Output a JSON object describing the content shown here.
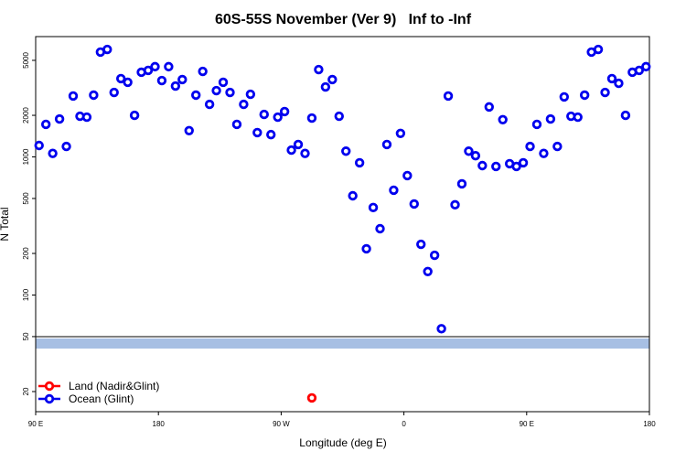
{
  "chart_data": {
    "type": "scatter",
    "title": "60S-55S November (Ver 9)   Inf to -Inf",
    "x_label": "Longitude (deg E)",
    "y_label": "N Total",
    "log_y": true,
    "legend": "lower left",
    "xlim": [
      90,
      540
    ],
    "xticks": [
      {
        "value": 90,
        "label": "90 E"
      },
      180,
      {
        "value": 270,
        "label": "90 W"
      },
      {
        "value": 360,
        "label": "0"
      },
      {
        "value": 450,
        "label": "90 E"
      },
      {
        "value": 540,
        "label": "180"
      }
    ],
    "ylim": [
      14.3,
      7430
    ],
    "yticks": [
      20,
      50,
      100,
      200,
      500,
      1000,
      2000,
      5000
    ],
    "series": [
      {
        "name": "Land (Nadir&Glint)",
        "color": "#ff0000",
        "x": [
          292.5
        ],
        "values": [
          18
        ]
      },
      {
        "name": "Ocean (Glint)",
        "color": "#0000ee",
        "x": [
          92.5,
          97.5,
          102.5,
          107.5,
          112.5,
          117.5,
          122.5,
          127.5,
          132.5,
          137.5,
          142.5,
          147.5,
          152.5,
          157.5,
          162.5,
          167.5,
          172.5,
          177.5,
          182.5,
          187.5,
          192.5,
          197.5,
          202.5,
          207.5,
          212.5,
          217.5,
          222.5,
          227.5,
          232.5,
          237.5,
          242.5,
          247.5,
          252.5,
          257.5,
          262.5,
          267.5,
          272.5,
          277.5,
          282.5,
          287.5,
          292.5,
          297.5,
          302.5,
          307.5,
          312.5,
          317.5,
          322.5,
          327.5,
          332.5,
          337.5,
          342.5,
          347.5,
          352.5,
          357.5,
          362.5,
          367.5,
          372.5,
          377.5,
          382.5,
          387.5,
          392.5,
          397.5,
          402.5,
          407.5,
          412.5,
          417.5,
          422.5,
          427.5,
          432.5,
          437.5,
          442.5,
          447.5,
          452.5,
          457.5,
          462.5,
          467.5,
          472.5,
          477.5,
          482.5,
          487.5,
          492.5,
          497.5,
          502.5,
          507.5,
          512.5,
          517.5,
          522.5,
          527.5,
          532.5,
          537.5
        ],
        "values": [
          1210,
          1720,
          1060,
          1880,
          1190,
          2760,
          1970,
          1940,
          2800,
          5740,
          6000,
          2930,
          3690,
          3470,
          2000,
          4100,
          4230,
          4500,
          3570,
          4500,
          3260,
          3630,
          1550,
          2800,
          4160,
          2400,
          3020,
          3470,
          2930,
          1720,
          2400,
          2840,
          1500,
          2030,
          1450,
          1940,
          2130,
          1120,
          1230,
          1060,
          1910,
          4290,
          3210,
          3630,
          1970,
          1100,
          523,
          907,
          216,
          430,
          302,
          1230,
          574,
          1480,
          732,
          456,
          233,
          148,
          194,
          57,
          2760,
          450,
          638,
          1100,
          1020,
          865,
          2300,
          853,
          1860,
          893,
          853,
          907,
          1190,
          1720,
          1060,
          1880,
          1190,
          2720,
          1970,
          1940,
          2800,
          5740,
          6000,
          2930,
          3690,
          3410,
          2000,
          4100,
          4230,
          4500
        ]
      }
    ]
  }
}
